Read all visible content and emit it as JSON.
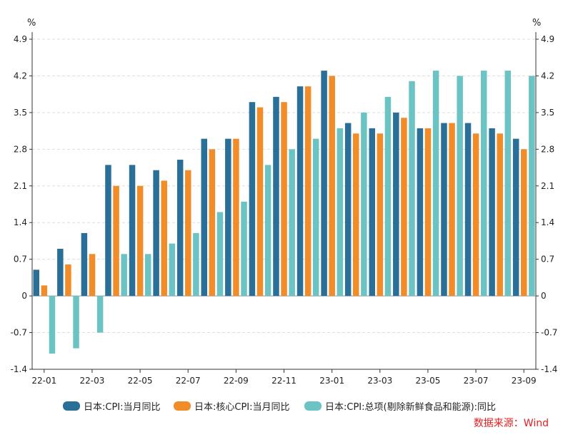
{
  "chart_data": {
    "type": "bar",
    "categories": [
      "22-01",
      "22-02",
      "22-03",
      "22-04",
      "22-05",
      "22-06",
      "22-07",
      "22-08",
      "22-09",
      "22-10",
      "22-11",
      "22-12",
      "23-01",
      "23-02",
      "23-03",
      "23-04",
      "23-05",
      "23-06",
      "23-07",
      "23-08",
      "23-09"
    ],
    "x_tick_labels": [
      "22-01",
      "22-03",
      "22-05",
      "22-07",
      "22-09",
      "22-11",
      "23-01",
      "23-03",
      "23-05",
      "23-07",
      "23-09"
    ],
    "series": [
      {
        "name": "日本:CPI:当月同比",
        "color": "#2a6f97",
        "values": [
          0.5,
          0.9,
          1.2,
          2.5,
          2.5,
          2.4,
          2.6,
          3.0,
          3.0,
          3.7,
          3.8,
          4.0,
          4.3,
          3.3,
          3.2,
          3.5,
          3.2,
          3.3,
          3.3,
          3.2,
          3.0
        ]
      },
      {
        "name": "日本:核心CPI:当月同比",
        "color": "#f28c28",
        "values": [
          0.2,
          0.6,
          0.8,
          2.1,
          2.1,
          2.2,
          2.4,
          2.8,
          3.0,
          3.6,
          3.7,
          4.0,
          4.2,
          3.1,
          3.1,
          3.4,
          3.2,
          3.3,
          3.1,
          3.1,
          2.8
        ]
      },
      {
        "name": "日本:CPI:总项(剔除新鲜食品和能源):同比",
        "color": "#6cc3c3",
        "values": [
          -1.1,
          -1.0,
          -0.7,
          0.8,
          0.8,
          1.0,
          1.2,
          1.6,
          1.8,
          2.5,
          2.8,
          3.0,
          3.2,
          3.5,
          3.8,
          4.1,
          4.3,
          4.2,
          4.3,
          4.3,
          4.2
        ]
      }
    ],
    "y_ticks": [
      "4.9",
      "4.2",
      "3.5",
      "2.8",
      "2.1",
      "1.4",
      "0.7",
      "0",
      "-0.7",
      "-1.4"
    ],
    "ylim": [
      -1.4,
      4.9
    ],
    "y_unit_left": "%",
    "y_unit_right": "%",
    "grid": true,
    "legend_position": "bottom",
    "source": "数据来源：Wind"
  }
}
